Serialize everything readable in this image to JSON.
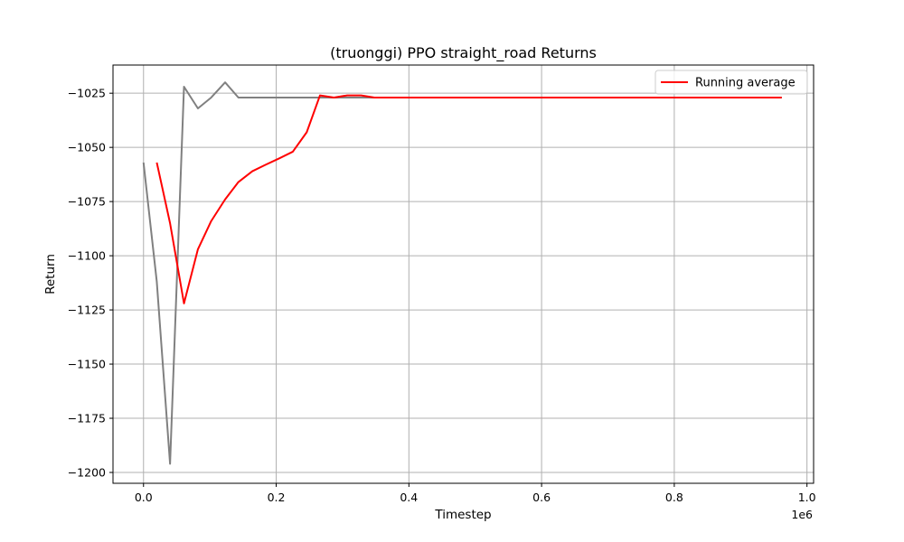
{
  "chart_data": {
    "type": "line",
    "title": "(truonggi) PPO straight_road Returns",
    "xlabel": "Timestep",
    "ylabel": "Return",
    "x_offset_label": "1e6",
    "xlim": [
      -0.046,
      1.01
    ],
    "ylim": [
      -1205,
      -1012
    ],
    "x_ticks": [
      0.0,
      0.2,
      0.4,
      0.6,
      0.8,
      1.0
    ],
    "x_tick_labels": [
      "0.0",
      "0.2",
      "0.4",
      "0.6",
      "0.8",
      "1.0"
    ],
    "y_ticks": [
      -1200,
      -1175,
      -1150,
      -1125,
      -1100,
      -1075,
      -1050,
      -1025
    ],
    "y_tick_labels": [
      "−1200",
      "−1175",
      "−1150",
      "−1125",
      "−1100",
      "−1075",
      "−1050",
      "−1025"
    ],
    "grid": true,
    "legend_position": "top-right",
    "series": [
      {
        "color": "#808080",
        "x": [
          0.0,
          0.02,
          0.04,
          0.061,
          0.082,
          0.102,
          0.123,
          0.143,
          0.164,
          0.184,
          0.205,
          0.225,
          0.246,
          0.266,
          0.287,
          0.307,
          0.328,
          0.348,
          0.4,
          0.6,
          0.8,
          0.962
        ],
        "y": [
          -1057,
          -1112,
          -1196,
          -1022,
          -1032,
          -1027,
          -1020,
          -1027,
          -1027,
          -1027,
          -1027,
          -1027,
          -1027,
          -1027,
          -1027,
          -1027,
          -1027,
          -1027,
          -1027,
          -1027,
          -1027,
          -1027
        ]
      },
      {
        "name": "Running average",
        "color": "#ff0000",
        "x": [
          0.02,
          0.04,
          0.061,
          0.082,
          0.102,
          0.123,
          0.143,
          0.164,
          0.184,
          0.205,
          0.225,
          0.246,
          0.266,
          0.287,
          0.307,
          0.328,
          0.348,
          0.4,
          0.6,
          0.8,
          0.962
        ],
        "y": [
          -1057,
          -1085,
          -1122,
          -1097,
          -1084,
          -1074,
          -1066,
          -1061,
          -1058,
          -1055,
          -1052,
          -1043,
          -1026,
          -1027,
          -1026,
          -1026,
          -1027,
          -1027,
          -1027,
          -1027,
          -1027
        ]
      }
    ]
  }
}
